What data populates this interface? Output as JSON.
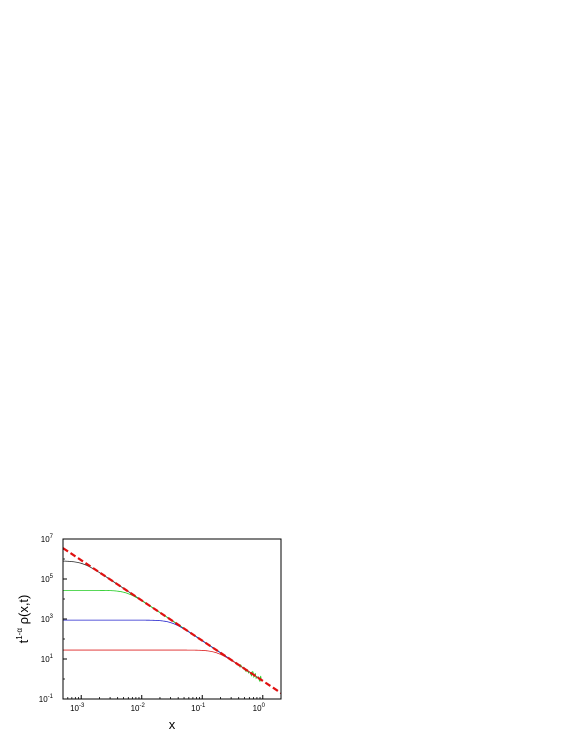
{
  "chart_data": {
    "type": "line",
    "title": "",
    "xlabel": "x",
    "ylabel": "t^{1-α} ρ(x,t)",
    "ylabel_parts": {
      "base": "t",
      "exponent": "1-α",
      "rest": " ρ(x,t)"
    },
    "x_scale": "log",
    "y_scale": "log",
    "xlim": [
      0.0005,
      2
    ],
    "ylim": [
      0.1,
      10000000
    ],
    "x_ticks": [
      {
        "value": 0.001,
        "base": "10",
        "exp": "-3"
      },
      {
        "value": 0.01,
        "base": "10",
        "exp": "-2"
      },
      {
        "value": 0.1,
        "base": "10",
        "exp": "-1"
      },
      {
        "value": 1,
        "base": "10",
        "exp": "0"
      }
    ],
    "y_ticks": [
      {
        "value": 0.1,
        "base": "10",
        "exp": "-1"
      },
      {
        "value": 10,
        "base": "10",
        "exp": "1"
      },
      {
        "value": 1000,
        "base": "10",
        "exp": "3"
      },
      {
        "value": 100000,
        "base": "10",
        "exp": "5"
      },
      {
        "value": 10000000,
        "base": "10",
        "exp": "7"
      }
    ],
    "grid": false,
    "series": [
      {
        "color": "#303030",
        "plateau": 800000,
        "noisy": false
      },
      {
        "color": "#22cc22",
        "plateau": 27000,
        "noisy": true
      },
      {
        "color": "#2222cc",
        "plateau": 880,
        "noisy": false
      },
      {
        "color": "#dd2222",
        "plateau": 28,
        "noisy": false
      }
    ],
    "reference_line": {
      "style": "dashed",
      "color": "#e01010",
      "points": [
        [
          0.0005,
          3500000
        ],
        [
          2,
          0.2
        ]
      ]
    }
  }
}
